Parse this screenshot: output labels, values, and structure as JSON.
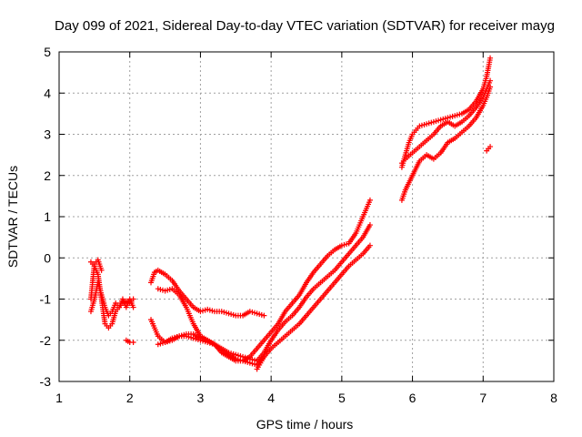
{
  "chart_data": {
    "type": "scatter",
    "title": "Day 099 of 2021, Sidereal Day-to-day VTEC variation (SDTVAR) for receiver mayg",
    "xlabel": "GPS time / hours",
    "ylabel": "SDTVAR / TECUs",
    "xlim": [
      1,
      8
    ],
    "ylim": [
      -3,
      5
    ],
    "xticks": [
      1,
      2,
      3,
      4,
      5,
      6,
      7,
      8
    ],
    "yticks": [
      -3,
      -2,
      -1,
      0,
      1,
      2,
      3,
      4,
      5
    ],
    "grid": true,
    "marker": "plus",
    "color": "#ff0000",
    "tracks": [
      {
        "x": [
          1.45,
          1.5,
          1.55,
          1.6,
          1.65,
          1.7,
          1.75,
          1.8,
          1.85,
          1.9,
          1.95,
          2.0,
          2.05
        ],
        "y": [
          -1.3,
          -1.0,
          -0.6,
          -0.9,
          -1.2,
          -1.4,
          -1.3,
          -1.1,
          -1.2,
          -1.1,
          -1.05,
          -1.1,
          -1.0
        ]
      },
      {
        "x": [
          1.45,
          1.5,
          1.55,
          1.6,
          1.65,
          1.7,
          1.75,
          1.8,
          1.85,
          1.9,
          1.95,
          2.0,
          2.05
        ],
        "y": [
          -0.1,
          -0.2,
          -0.4,
          -1.0,
          -1.6,
          -1.7,
          -1.6,
          -1.3,
          -1.2,
          -1.0,
          -1.2,
          -1.0,
          -1.2
        ]
      },
      {
        "x": [
          1.45,
          1.5,
          1.55,
          1.6
        ],
        "y": [
          -1.0,
          -0.15,
          -0.05,
          -0.3
        ]
      },
      {
        "x": [
          1.95,
          2.0,
          2.05
        ],
        "y": [
          -2.0,
          -2.05,
          -2.05
        ]
      },
      {
        "x": [
          2.3,
          2.35,
          2.4,
          2.5,
          2.6,
          2.7,
          2.8,
          2.9,
          3.0,
          3.1,
          3.2,
          3.3,
          3.4,
          3.5,
          3.6,
          3.7,
          3.8,
          3.9
        ],
        "y": [
          -0.6,
          -0.35,
          -0.3,
          -0.4,
          -0.55,
          -0.8,
          -1.0,
          -1.2,
          -1.3,
          -1.25,
          -1.3,
          -1.3,
          -1.35,
          -1.4,
          -1.4,
          -1.3,
          -1.35,
          -1.4
        ]
      },
      {
        "x": [
          2.3,
          2.4,
          2.5,
          2.6,
          2.7,
          2.8,
          2.9,
          3.0,
          3.1,
          3.2,
          3.3,
          3.4,
          3.5,
          3.6,
          3.7,
          3.8,
          3.9,
          4.0,
          4.1,
          4.2,
          4.3,
          4.4,
          4.5,
          4.6,
          4.7,
          4.8,
          4.9,
          5.0,
          5.1,
          5.2,
          5.3,
          5.4
        ],
        "y": [
          -1.5,
          -1.9,
          -2.05,
          -2.0,
          -1.9,
          -1.85,
          -1.85,
          -1.95,
          -2.0,
          -2.1,
          -2.3,
          -2.4,
          -2.5,
          -2.5,
          -2.4,
          -2.2,
          -2.0,
          -1.8,
          -1.6,
          -1.3,
          -1.1,
          -0.9,
          -0.6,
          -0.35,
          -0.15,
          0.05,
          0.2,
          0.3,
          0.35,
          0.6,
          1.0,
          1.4
        ]
      },
      {
        "x": [
          2.4,
          2.5,
          2.6,
          2.7,
          2.8,
          2.9,
          3.0,
          3.1,
          3.2,
          3.3,
          3.4,
          3.5,
          3.6,
          3.7,
          3.8,
          3.9,
          4.0,
          4.1,
          4.2,
          4.3,
          4.4,
          4.5,
          4.6,
          4.7,
          4.8,
          4.9,
          5.0,
          5.1,
          5.2,
          5.3,
          5.4
        ],
        "y": [
          -0.75,
          -0.8,
          -0.75,
          -0.9,
          -1.2,
          -1.6,
          -1.9,
          -2.0,
          -2.1,
          -2.2,
          -2.3,
          -2.35,
          -2.4,
          -2.45,
          -2.5,
          -2.3,
          -2.0,
          -1.75,
          -1.55,
          -1.4,
          -1.2,
          -0.95,
          -0.75,
          -0.6,
          -0.45,
          -0.3,
          -0.1,
          0.1,
          0.3,
          0.5,
          0.8
        ]
      },
      {
        "x": [
          2.4,
          2.5,
          2.6,
          2.7,
          2.8,
          2.9,
          3.0,
          3.1,
          3.2,
          3.3,
          3.4,
          3.5,
          3.6,
          3.7,
          3.8,
          3.9,
          4.0,
          4.1,
          4.2,
          4.3,
          4.4,
          4.5,
          4.6,
          4.7,
          4.8,
          4.9,
          5.0,
          5.1,
          5.2,
          5.3,
          5.4
        ],
        "y": [
          -2.1,
          -2.05,
          -1.95,
          -1.9,
          -1.9,
          -1.95,
          -2.0,
          -2.05,
          -2.1,
          -2.25,
          -2.35,
          -2.45,
          -2.5,
          -2.55,
          -2.6,
          -2.4,
          -2.2,
          -2.05,
          -1.9,
          -1.75,
          -1.6,
          -1.4,
          -1.2,
          -1.0,
          -0.8,
          -0.6,
          -0.4,
          -0.2,
          -0.05,
          0.1,
          0.3
        ]
      },
      {
        "x": [
          3.8,
          3.85,
          3.9
        ],
        "y": [
          -2.7,
          -2.55,
          -2.4
        ]
      },
      {
        "x": [
          5.85,
          5.9,
          5.95,
          6.0,
          6.05,
          6.1,
          6.2,
          6.3,
          6.4,
          6.5,
          6.6,
          6.7,
          6.8,
          6.9,
          7.0,
          7.05,
          7.1
        ],
        "y": [
          2.2,
          2.5,
          2.8,
          3.0,
          3.1,
          3.2,
          3.25,
          3.3,
          3.35,
          3.4,
          3.45,
          3.5,
          3.6,
          3.8,
          4.1,
          4.4,
          4.85
        ]
      },
      {
        "x": [
          5.85,
          5.9,
          6.0,
          6.1,
          6.2,
          6.3,
          6.4,
          6.5,
          6.6,
          6.7,
          6.8,
          6.9,
          7.0,
          7.05,
          7.1
        ],
        "y": [
          2.3,
          2.4,
          2.55,
          2.7,
          2.85,
          3.0,
          3.2,
          3.3,
          3.2,
          3.3,
          3.45,
          3.65,
          3.9,
          4.1,
          4.3
        ]
      },
      {
        "x": [
          5.85,
          5.9,
          6.0,
          6.1,
          6.2,
          6.3,
          6.4,
          6.5,
          6.6,
          6.7,
          6.8,
          6.9,
          7.0,
          7.05,
          7.1
        ],
        "y": [
          1.4,
          1.65,
          2.0,
          2.35,
          2.5,
          2.4,
          2.55,
          2.8,
          2.9,
          3.05,
          3.2,
          3.4,
          3.7,
          3.9,
          4.15
        ]
      },
      {
        "x": [
          7.05,
          7.1
        ],
        "y": [
          2.6,
          2.7
        ]
      }
    ]
  }
}
